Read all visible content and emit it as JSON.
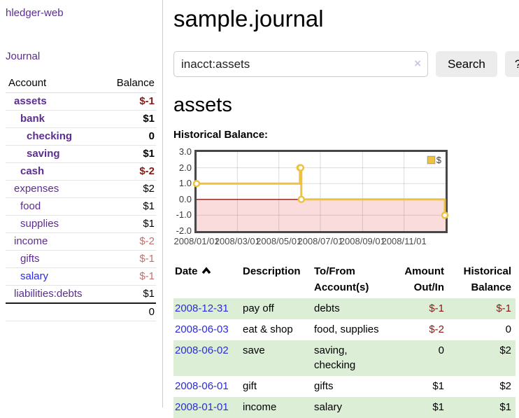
{
  "sidebar": {
    "brand": "hledger-web",
    "journal_link": "Journal",
    "accounts": {
      "header_account": "Account",
      "header_balance": "Balance",
      "rows": [
        {
          "account": "assets",
          "balance": "$-1",
          "level": 1,
          "bold": true,
          "balance_tone": "neg-strong"
        },
        {
          "account": "bank",
          "balance": "$1",
          "level": 2,
          "bold": true,
          "balance_tone": "pos"
        },
        {
          "account": "checking",
          "balance": "0",
          "level": 3,
          "bold": true,
          "balance_tone": "pos"
        },
        {
          "account": "saving",
          "balance": "$1",
          "level": 3,
          "bold": true,
          "balance_tone": "pos"
        },
        {
          "account": "cash",
          "balance": "$-2",
          "level": 2,
          "bold": true,
          "balance_tone": "neg-strong"
        },
        {
          "account": "expenses",
          "balance": "$2",
          "level": 1,
          "bold": false,
          "balance_tone": "pos"
        },
        {
          "account": "food",
          "balance": "$1",
          "level": 2,
          "bold": false,
          "balance_tone": "pos"
        },
        {
          "account": "supplies",
          "balance": "$1",
          "level": 2,
          "bold": false,
          "balance_tone": "pos"
        },
        {
          "account": "income",
          "balance": "$-2",
          "level": 1,
          "bold": false,
          "balance_tone": "neg-soft"
        },
        {
          "account": "gifts",
          "balance": "$-1",
          "level": 2,
          "bold": false,
          "balance_tone": "neg-soft"
        },
        {
          "account": "salary",
          "balance": "$-1",
          "level": 2,
          "bold": false,
          "balance_tone": "neg-soft",
          "link_style": "blue"
        },
        {
          "account": "liabilities:debts",
          "balance": "$1",
          "level": 1,
          "bold": false,
          "balance_tone": "pos"
        }
      ],
      "total": "0"
    }
  },
  "main": {
    "title": "sample.journal",
    "search": {
      "value": "inacct:assets",
      "clear_icon": "×",
      "button_label": "Search",
      "help_label": "?"
    },
    "account_heading": "assets",
    "chart_heading": "Historical Balance:"
  },
  "chart_data": {
    "type": "line",
    "step": true,
    "title": "Historical Balance",
    "legend": "$",
    "legend_position": "top-right",
    "series": [
      {
        "name": "$",
        "color": "#edc240",
        "points": [
          {
            "date": "2008-01-01",
            "value": 1
          },
          {
            "date": "2008-06-01",
            "value": 2
          },
          {
            "date": "2008-06-02",
            "value": 2
          },
          {
            "date": "2008-06-03",
            "value": 0
          },
          {
            "date": "2008-12-31",
            "value": -1
          }
        ]
      }
    ],
    "x_axis": {
      "range": [
        "2008-01-01",
        "2009-01-01"
      ],
      "gridline_dates": [
        "2008-01-01",
        "2008-03-01",
        "2008-05-01",
        "2008-07-01",
        "2008-09-01",
        "2008-11-01"
      ],
      "labels": [
        "2008/01/01",
        "2008/03/01",
        "2008/05/01",
        "2008/07/01",
        "2008/09/01",
        "2008/11/01"
      ]
    },
    "y_axis": {
      "range": [
        -2,
        3
      ],
      "ticks": [
        {
          "label": "3.0",
          "value": 3
        },
        {
          "label": "2.0",
          "value": 2
        },
        {
          "label": "1.0",
          "value": 1
        },
        {
          "label": "0.0",
          "value": 0
        },
        {
          "label": "-1.0",
          "value": -1
        },
        {
          "label": "-2.0",
          "value": -2
        }
      ]
    },
    "style": {
      "negative_region_color": "#fadcdc",
      "zero_line_color": "#8b1a10",
      "grid_color": "rgba(110,110,110,0.25)"
    }
  },
  "register": {
    "headers": {
      "date": "Date",
      "description": "Description",
      "accounts": "To/From Account(s)",
      "amount": "Amount Out/In",
      "balance": "Historical Balance"
    },
    "rows": [
      {
        "date": "2008-12-31",
        "description": "pay off",
        "accounts": "debts",
        "amount": "$-1",
        "balance": "$-1"
      },
      {
        "date": "2008-06-03",
        "description": "eat & shop",
        "accounts": "food, supplies",
        "amount": "$-2",
        "balance": "0"
      },
      {
        "date": "2008-06-02",
        "description": "save",
        "accounts": "saving, checking",
        "amount": "0",
        "balance": "$2"
      },
      {
        "date": "2008-06-01",
        "description": "gift",
        "accounts": "gifts",
        "amount": "$1",
        "balance": "$2"
      },
      {
        "date": "2008-01-01",
        "description": "income",
        "accounts": "salary",
        "amount": "$1",
        "balance": "$1"
      }
    ]
  }
}
